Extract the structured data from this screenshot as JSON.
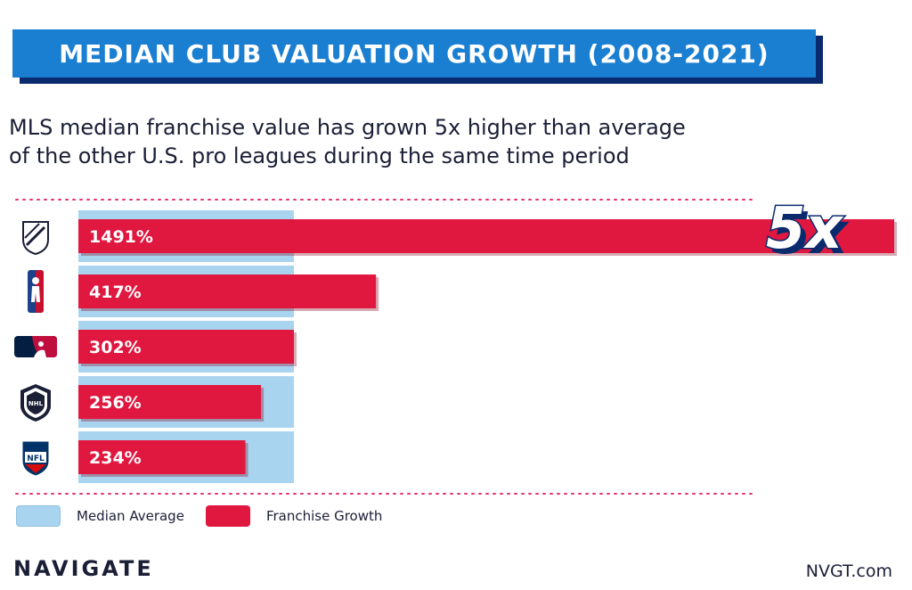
{
  "header": {
    "title": "MEDIAN CLUB VALUATION GROWTH (2008-2021)"
  },
  "subtitle": "MLS median franchise value has grown 5x higher than average\n of the other U.S. pro leagues during the same time period",
  "colors": {
    "median": "#a9d4ef",
    "growth": "#e0173f",
    "banner": "#1b7fd1",
    "divider": "#e8326a"
  },
  "legend": {
    "median_label": "Median Average",
    "growth_label": "Franchise Growth"
  },
  "footer": {
    "brand": "NAVIGATE",
    "site": "NVGT.com"
  },
  "chart_data": {
    "type": "bar",
    "orientation": "horizontal",
    "categories": [
      "MLS",
      "NBA",
      "MLB",
      "NHL",
      "NFL"
    ],
    "category_icons": [
      "mls-logo",
      "nba-logo",
      "mlb-logo",
      "nhl-logo",
      "nfl-logo"
    ],
    "series": [
      {
        "name": "Franchise Growth",
        "values": [
          1491,
          417,
          302,
          256,
          234
        ]
      },
      {
        "name": "Median Average",
        "values": [
          302,
          302,
          302,
          302,
          302
        ]
      }
    ],
    "data_labels": [
      "1491%",
      "417%",
      "302%",
      "256%",
      "234%"
    ],
    "annotation": "5x"
  }
}
